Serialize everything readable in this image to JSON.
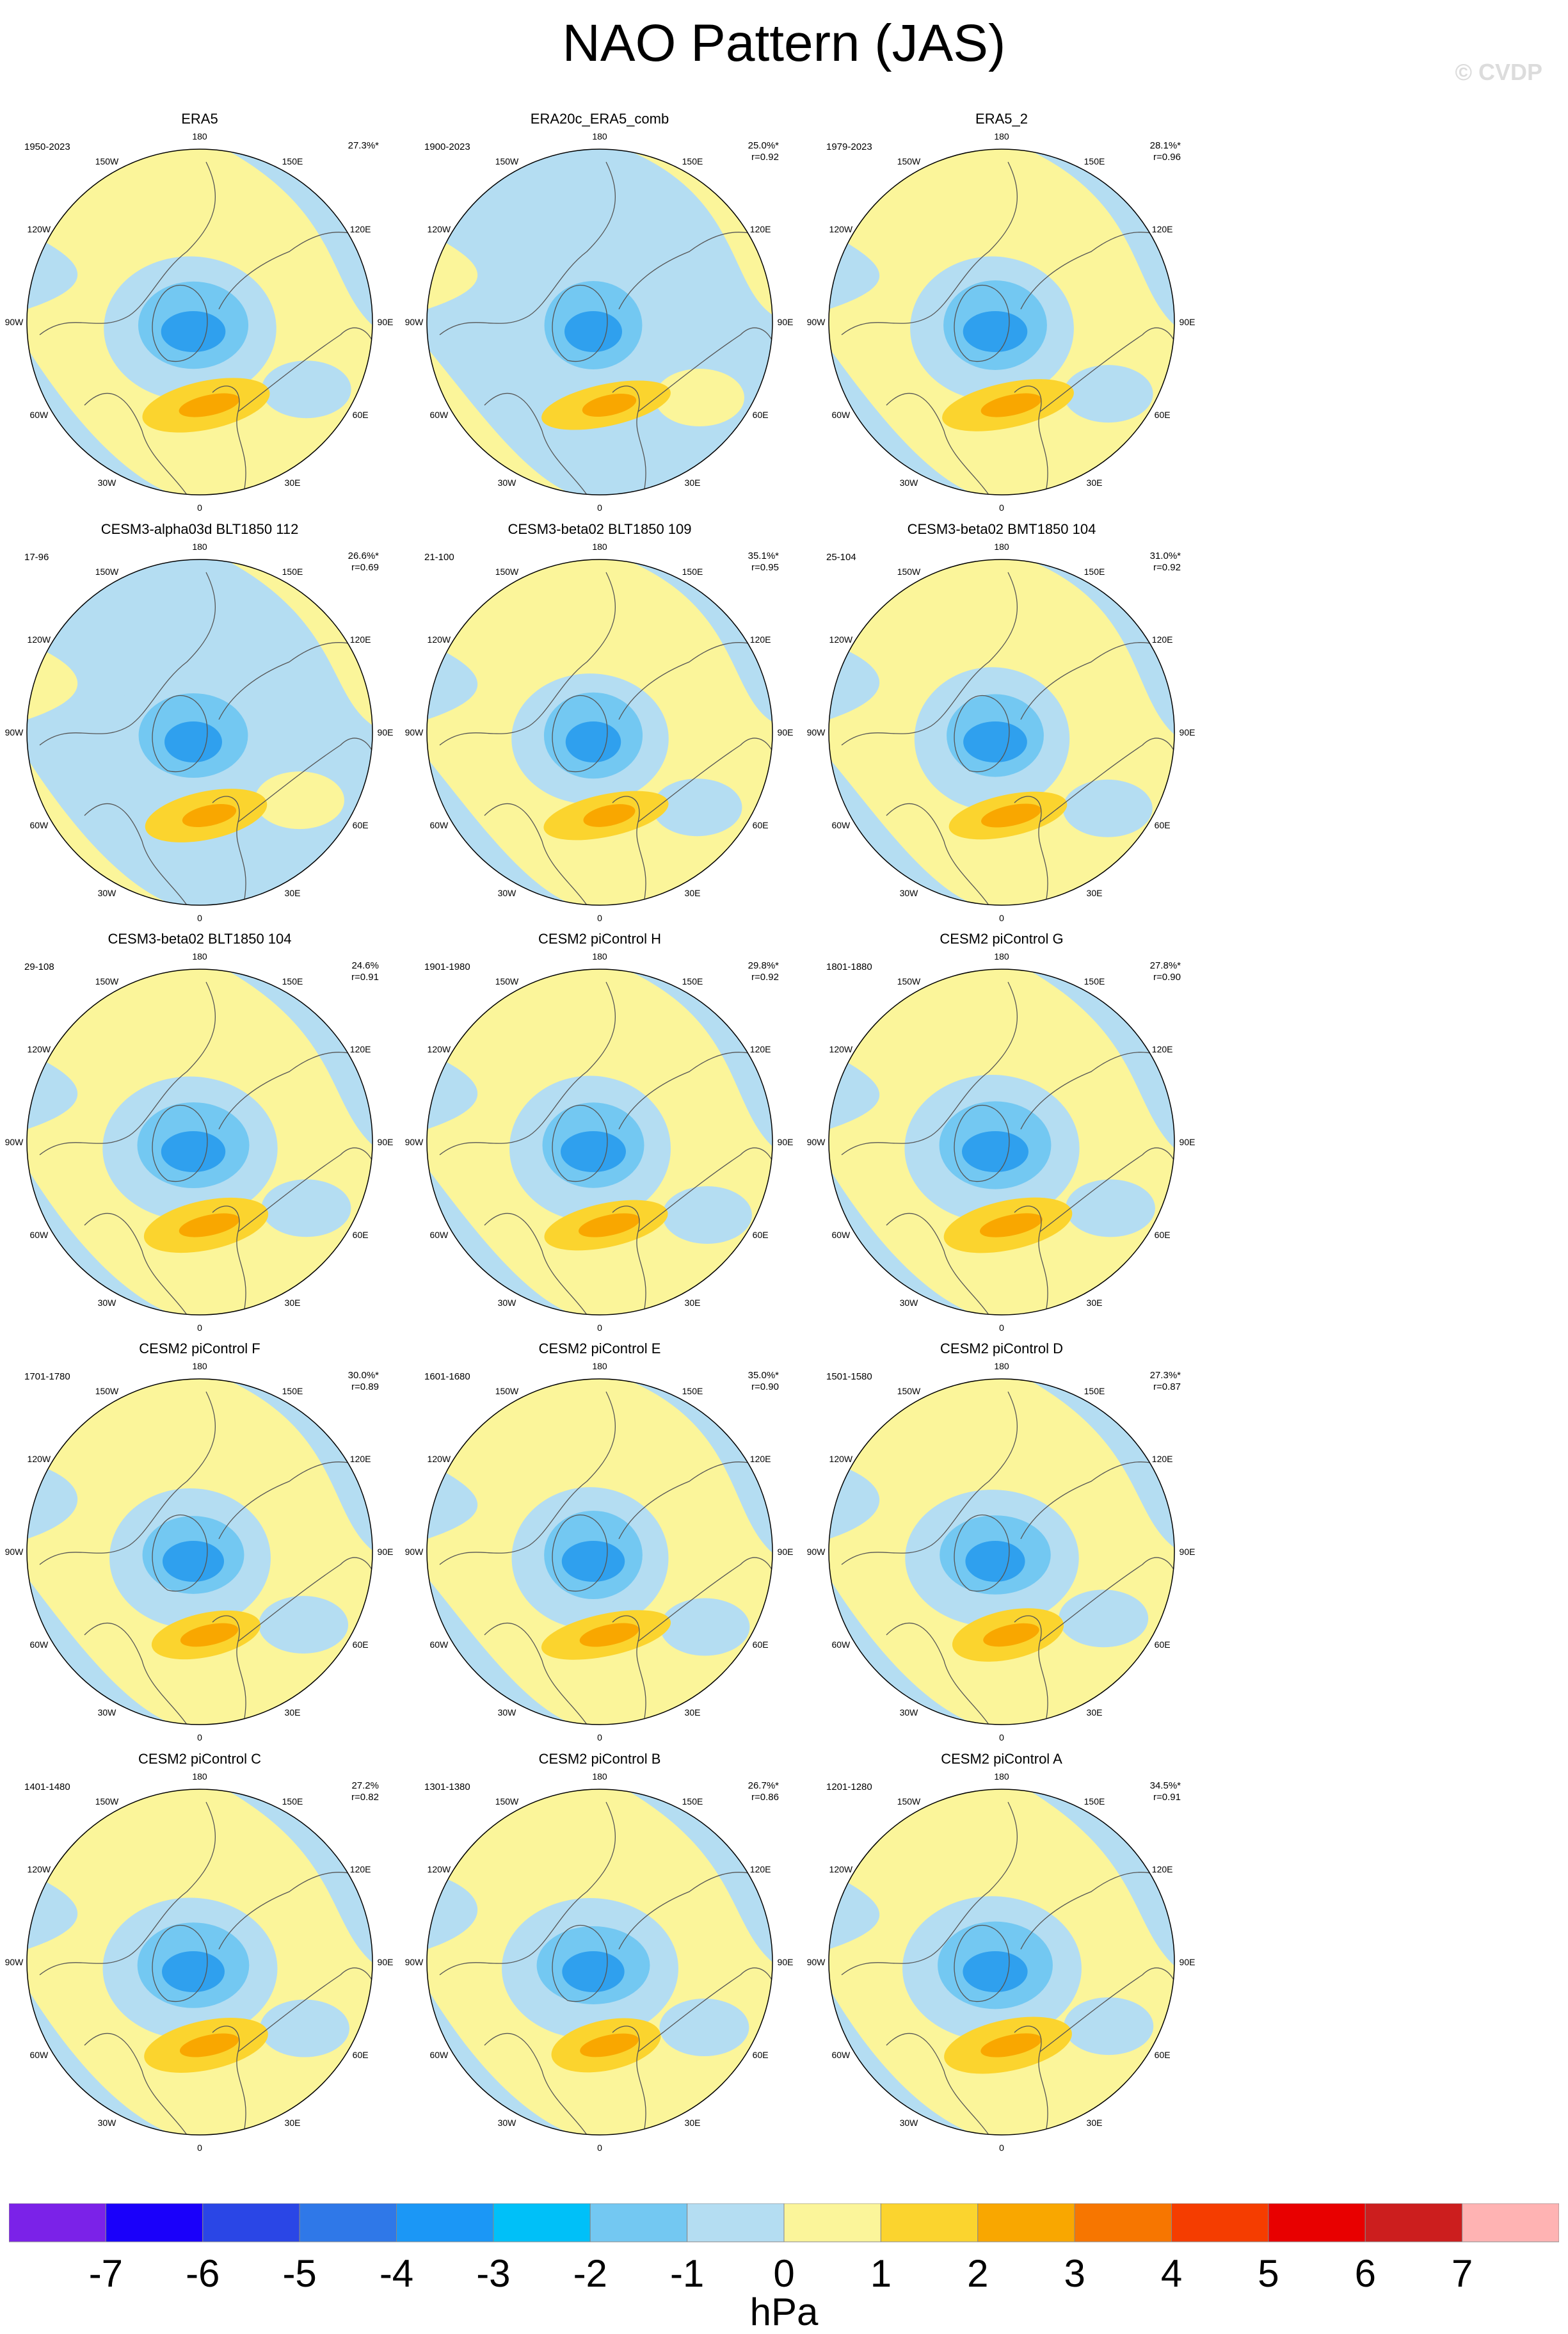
{
  "title": "NAO Pattern (JAS)",
  "watermark": "© CVDP",
  "lon_labels": {
    "top": "180",
    "bottom": "0",
    "upper_left": "150W",
    "upper_right": "150E",
    "mid_upper_left": "120W",
    "mid_upper_right": "120E",
    "left": "90W",
    "right": "90E",
    "mid_lower_left": "60W",
    "mid_lower_right": "60E",
    "lower_left": "30W",
    "lower_right": "30E"
  },
  "panels": [
    {
      "title": "ERA5",
      "period": "1950-2023",
      "pct": "27.3%*",
      "r": ""
    },
    {
      "title": "ERA20c_ERA5_comb",
      "period": "1900-2023",
      "pct": "25.0%*",
      "r": "r=0.92"
    },
    {
      "title": "ERA5_2",
      "period": "1979-2023",
      "pct": "28.1%*",
      "r": "r=0.96"
    },
    {
      "title": "CESM3-alpha03d BLT1850 112",
      "period": "17-96",
      "pct": "26.6%*",
      "r": "r=0.69"
    },
    {
      "title": "CESM3-beta02 BLT1850 109",
      "period": "21-100",
      "pct": "35.1%*",
      "r": "r=0.95"
    },
    {
      "title": "CESM3-beta02 BMT1850 104",
      "period": "25-104",
      "pct": "31.0%*",
      "r": "r=0.92"
    },
    {
      "title": "CESM3-beta02 BLT1850 104",
      "period": "29-108",
      "pct": "24.6%",
      "r": "r=0.91"
    },
    {
      "title": "CESM2 piControl H",
      "period": "1901-1980",
      "pct": "29.8%*",
      "r": "r=0.92"
    },
    {
      "title": "CESM2 piControl G",
      "period": "1801-1880",
      "pct": "27.8%*",
      "r": "r=0.90"
    },
    {
      "title": "CESM2 piControl F",
      "period": "1701-1780",
      "pct": "30.0%*",
      "r": "r=0.89"
    },
    {
      "title": "CESM2 piControl E",
      "period": "1601-1680",
      "pct": "35.0%*",
      "r": "r=0.90"
    },
    {
      "title": "CESM2 piControl D",
      "period": "1501-1580",
      "pct": "27.3%*",
      "r": "r=0.87"
    },
    {
      "title": "CESM2 piControl C",
      "period": "1401-1480",
      "pct": "27.2%",
      "r": "r=0.82"
    },
    {
      "title": "CESM2 piControl B",
      "period": "1301-1380",
      "pct": "26.7%*",
      "r": "r=0.86"
    },
    {
      "title": "CESM2 piControl A",
      "period": "1201-1280",
      "pct": "34.5%*",
      "r": "r=0.91"
    }
  ],
  "colorbar": {
    "unit": "hPa",
    "ticks": [
      "-7",
      "-6",
      "-5",
      "-4",
      "-3",
      "-2",
      "-1",
      "0",
      "1",
      "2",
      "3",
      "4",
      "5",
      "6",
      "7"
    ],
    "colors": [
      "#7b22e8",
      "#1a00fa",
      "#2a46e6",
      "#2f78e8",
      "#1b97f6",
      "#00c0f8",
      "#73c8f2",
      "#b4ddf2",
      "#fbf59a",
      "#fbd42e",
      "#f9a700",
      "#f77600",
      "#f53d00",
      "#e80000",
      "#cc1e1e",
      "#ffb3b3"
    ]
  },
  "colors": {
    "negative_light": "#b4ddf2",
    "negative_mid": "#73c8f2",
    "negative_strong": "#2fa0ee",
    "positive_light": "#fbf59a",
    "positive_mid": "#fbd42e",
    "positive_strong": "#f9a700",
    "coastline": "#555555"
  }
}
